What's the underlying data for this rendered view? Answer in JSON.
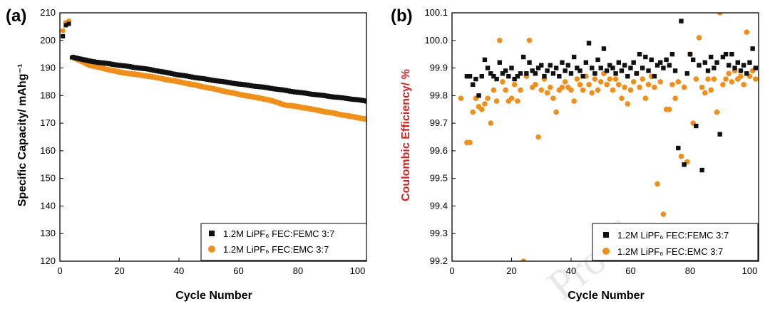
{
  "colors": {
    "fecfemc": "#111111",
    "fecemc": "#f0901c",
    "ce_axis_label": "#d42020",
    "watermark": "#e8e8e8"
  },
  "watermark": "Proof",
  "chart_data": [
    {
      "type": "scatter",
      "panel_label": "(a)",
      "title": "",
      "xlabel": "Cycle Number",
      "ylabel": "Specific Capacity/ mAhg⁻¹",
      "xlim": [
        0,
        103
      ],
      "ylim": [
        120,
        210
      ],
      "xticks": [
        0,
        20,
        40,
        60,
        80,
        100
      ],
      "yticks": [
        120,
        130,
        140,
        150,
        160,
        170,
        180,
        190,
        200,
        210
      ],
      "legend_position": "bottom-right",
      "series": [
        {
          "name": "1.2M LiPF6 FEC:FEMC 3:7",
          "legend_label": "1.2M LiPF₆ FEC:FEMC 3:7",
          "marker": "square",
          "formation": [
            [
              1,
              201.5
            ],
            [
              2,
              205.5
            ],
            [
              3,
              206.0
            ]
          ],
          "curve": [
            [
              4,
              194.0
            ],
            [
              10,
              192.5
            ],
            [
              20,
              191.0
            ],
            [
              30,
              189.5
            ],
            [
              40,
              187.5
            ],
            [
              50,
              185.8
            ],
            [
              60,
              184.2
            ],
            [
              70,
              182.8
            ],
            [
              80,
              181.2
            ],
            [
              90,
              179.8
            ],
            [
              100,
              178.5
            ],
            [
              103,
              178.0
            ]
          ]
        },
        {
          "name": "1.2M LiPF6 FEC:EMC 3:7",
          "legend_label": "1.2M LiPF₆ FEC:EMC 3:7",
          "marker": "circle",
          "formation": [
            [
              1,
              203.5
            ],
            [
              2,
              206.5
            ],
            [
              3,
              207.0
            ]
          ],
          "curve": [
            [
              4,
              194.0
            ],
            [
              10,
              191.0
            ],
            [
              20,
              188.5
            ],
            [
              30,
              187.0
            ],
            [
              40,
              185.0
            ],
            [
              50,
              182.8
            ],
            [
              60,
              180.5
            ],
            [
              70,
              178.5
            ],
            [
              76,
              176.5
            ],
            [
              80,
              176.0
            ],
            [
              90,
              174.0
            ],
            [
              100,
              172.0
            ],
            [
              103,
              171.5
            ]
          ]
        }
      ]
    },
    {
      "type": "scatter",
      "panel_label": "(b)",
      "title": "",
      "xlabel": "Cycle Number",
      "ylabel": "Coulombic Efficiency/ %",
      "xlim": [
        0,
        103
      ],
      "ylim": [
        99.2,
        100.1
      ],
      "xticks": [
        0,
        20,
        40,
        60,
        80,
        100
      ],
      "yticks": [
        99.2,
        99.3,
        99.4,
        99.5,
        99.6,
        99.7,
        99.8,
        99.9,
        100.0,
        100.1
      ],
      "legend_position": "bottom-right",
      "series": [
        {
          "name": "1.2M LiPF6 FEC:FEMC 3:7",
          "legend_label": "1.2M LiPF₆ FEC:FEMC 3:7",
          "marker": "square",
          "points": [
            [
              5,
              99.87
            ],
            [
              6,
              99.87
            ],
            [
              7,
              99.84
            ],
            [
              8,
              99.86
            ],
            [
              9,
              99.8
            ],
            [
              10,
              99.87
            ],
            [
              11,
              99.93
            ],
            [
              12,
              99.9
            ],
            [
              13,
              99.88
            ],
            [
              14,
              99.87
            ],
            [
              15,
              99.86
            ],
            [
              16,
              99.92
            ],
            [
              17,
              99.88
            ],
            [
              18,
              99.89
            ],
            [
              19,
              99.87
            ],
            [
              20,
              99.9
            ],
            [
              21,
              99.86
            ],
            [
              22,
              99.87
            ],
            [
              23,
              99.88
            ],
            [
              24,
              99.94
            ],
            [
              25,
              99.88
            ],
            [
              26,
              99.92
            ],
            [
              27,
              99.89
            ],
            [
              28,
              99.88
            ],
            [
              29,
              99.9
            ],
            [
              30,
              99.91
            ],
            [
              31,
              99.87
            ],
            [
              32,
              99.89
            ],
            [
              33,
              99.91
            ],
            [
              34,
              99.88
            ],
            [
              35,
              99.9
            ],
            [
              36,
              99.87
            ],
            [
              37,
              99.92
            ],
            [
              38,
              99.89
            ],
            [
              39,
              99.91
            ],
            [
              40,
              99.88
            ],
            [
              41,
              99.94
            ],
            [
              42,
              99.9
            ],
            [
              43,
              99.89
            ],
            [
              44,
              99.87
            ],
            [
              45,
              99.92
            ],
            [
              46,
              99.99
            ],
            [
              47,
              99.9
            ],
            [
              48,
              99.88
            ],
            [
              49,
              99.93
            ],
            [
              50,
              99.9
            ],
            [
              51,
              99.97
            ],
            [
              52,
              99.89
            ],
            [
              53,
              99.91
            ],
            [
              54,
              99.9
            ],
            [
              55,
              99.88
            ],
            [
              56,
              99.92
            ],
            [
              57,
              99.89
            ],
            [
              58,
              99.91
            ],
            [
              59,
              99.87
            ],
            [
              60,
              99.9
            ],
            [
              61,
              99.92
            ],
            [
              62,
              99.88
            ],
            [
              63,
              99.95
            ],
            [
              64,
              99.9
            ],
            [
              65,
              99.94
            ],
            [
              66,
              99.89
            ],
            [
              67,
              99.93
            ],
            [
              68,
              99.87
            ],
            [
              69,
              99.91
            ],
            [
              70,
              99.92
            ],
            [
              71,
              99.9
            ],
            [
              72,
              99.93
            ],
            [
              73,
              99.91
            ],
            [
              74,
              99.95
            ],
            [
              75,
              99.89
            ],
            [
              76,
              99.61
            ],
            [
              77,
              100.07
            ],
            [
              78,
              99.55
            ],
            [
              79,
              99.88
            ],
            [
              80,
              99.95
            ],
            [
              81,
              99.93
            ],
            [
              82,
              99.69
            ],
            [
              83,
              99.91
            ],
            [
              84,
              99.53
            ],
            [
              85,
              99.92
            ],
            [
              86,
              99.89
            ],
            [
              87,
              99.94
            ],
            [
              88,
              99.9
            ],
            [
              89,
              99.92
            ],
            [
              90,
              99.66
            ],
            [
              91,
              99.94
            ],
            [
              92,
              99.95
            ],
            [
              93,
              99.91
            ],
            [
              94,
              99.95
            ],
            [
              95,
              99.9
            ],
            [
              96,
              99.92
            ],
            [
              97,
              99.89
            ],
            [
              98,
              99.91
            ],
            [
              99,
              99.88
            ],
            [
              100,
              99.92
            ],
            [
              101,
              99.97
            ],
            [
              102,
              99.9
            ]
          ]
        },
        {
          "name": "1.2M LiPF6 FEC:EMC 3:7",
          "legend_label": "1.2M LiPF₆ FEC:EMC 3:7",
          "marker": "circle",
          "points": [
            [
              3,
              99.79
            ],
            [
              5,
              99.63
            ],
            [
              6,
              99.63
            ],
            [
              7,
              99.74
            ],
            [
              8,
              99.79
            ],
            [
              9,
              99.76
            ],
            [
              10,
              99.75
            ],
            [
              11,
              99.77
            ],
            [
              12,
              99.79
            ],
            [
              13,
              99.7
            ],
            [
              14,
              99.82
            ],
            [
              15,
              99.78
            ],
            [
              16,
              100.0
            ],
            [
              17,
              99.85
            ],
            [
              18,
              99.82
            ],
            [
              19,
              99.78
            ],
            [
              20,
              99.79
            ],
            [
              21,
              99.84
            ],
            [
              22,
              99.78
            ],
            [
              23,
              99.82
            ],
            [
              24,
              99.2
            ],
            [
              25,
              99.87
            ],
            [
              26,
              100.0
            ],
            [
              27,
              99.83
            ],
            [
              28,
              99.84
            ],
            [
              29,
              99.65
            ],
            [
              30,
              99.82
            ],
            [
              31,
              99.86
            ],
            [
              32,
              99.81
            ],
            [
              33,
              99.83
            ],
            [
              34,
              99.79
            ],
            [
              35,
              99.74
            ],
            [
              36,
              99.82
            ],
            [
              37,
              99.83
            ],
            [
              38,
              99.85
            ],
            [
              39,
              99.83
            ],
            [
              40,
              99.82
            ],
            [
              41,
              99.78
            ],
            [
              42,
              99.86
            ],
            [
              43,
              99.84
            ],
            [
              44,
              99.82
            ],
            [
              45,
              99.87
            ],
            [
              46,
              99.84
            ],
            [
              47,
              99.81
            ],
            [
              48,
              99.86
            ],
            [
              49,
              99.82
            ],
            [
              50,
              99.85
            ],
            [
              51,
              99.88
            ],
            [
              52,
              99.84
            ],
            [
              53,
              99.86
            ],
            [
              54,
              99.82
            ],
            [
              55,
              99.86
            ],
            [
              56,
              99.84
            ],
            [
              57,
              99.79
            ],
            [
              58,
              99.83
            ],
            [
              59,
              99.77
            ],
            [
              60,
              99.82
            ],
            [
              61,
              99.85
            ],
            [
              62,
              99.88
            ],
            [
              63,
              99.83
            ],
            [
              64,
              99.86
            ],
            [
              65,
              99.79
            ],
            [
              66,
              99.84
            ],
            [
              67,
              99.87
            ],
            [
              68,
              99.83
            ],
            [
              69,
              99.48
            ],
            [
              70,
              99.85
            ],
            [
              71,
              99.37
            ],
            [
              72,
              99.75
            ],
            [
              73,
              99.75
            ],
            [
              74,
              99.84
            ],
            [
              75,
              99.79
            ],
            [
              76,
              99.85
            ],
            [
              77,
              99.58
            ],
            [
              78,
              99.83
            ],
            [
              79,
              99.56
            ],
            [
              80,
              99.95
            ],
            [
              81,
              99.7
            ],
            [
              82,
              99.86
            ],
            [
              83,
              100.01
            ],
            [
              84,
              99.83
            ],
            [
              85,
              99.81
            ],
            [
              86,
              99.86
            ],
            [
              87,
              99.82
            ],
            [
              88,
              99.86
            ],
            [
              89,
              99.74
            ],
            [
              90,
              100.1
            ],
            [
              91,
              99.84
            ],
            [
              92,
              99.86
            ],
            [
              93,
              99.88
            ],
            [
              94,
              99.85
            ],
            [
              95,
              99.89
            ],
            [
              96,
              99.86
            ],
            [
              97,
              99.87
            ],
            [
              98,
              99.84
            ],
            [
              99,
              100.03
            ],
            [
              100,
              99.87
            ],
            [
              101,
              99.89
            ],
            [
              102,
              99.86
            ]
          ]
        }
      ]
    }
  ]
}
